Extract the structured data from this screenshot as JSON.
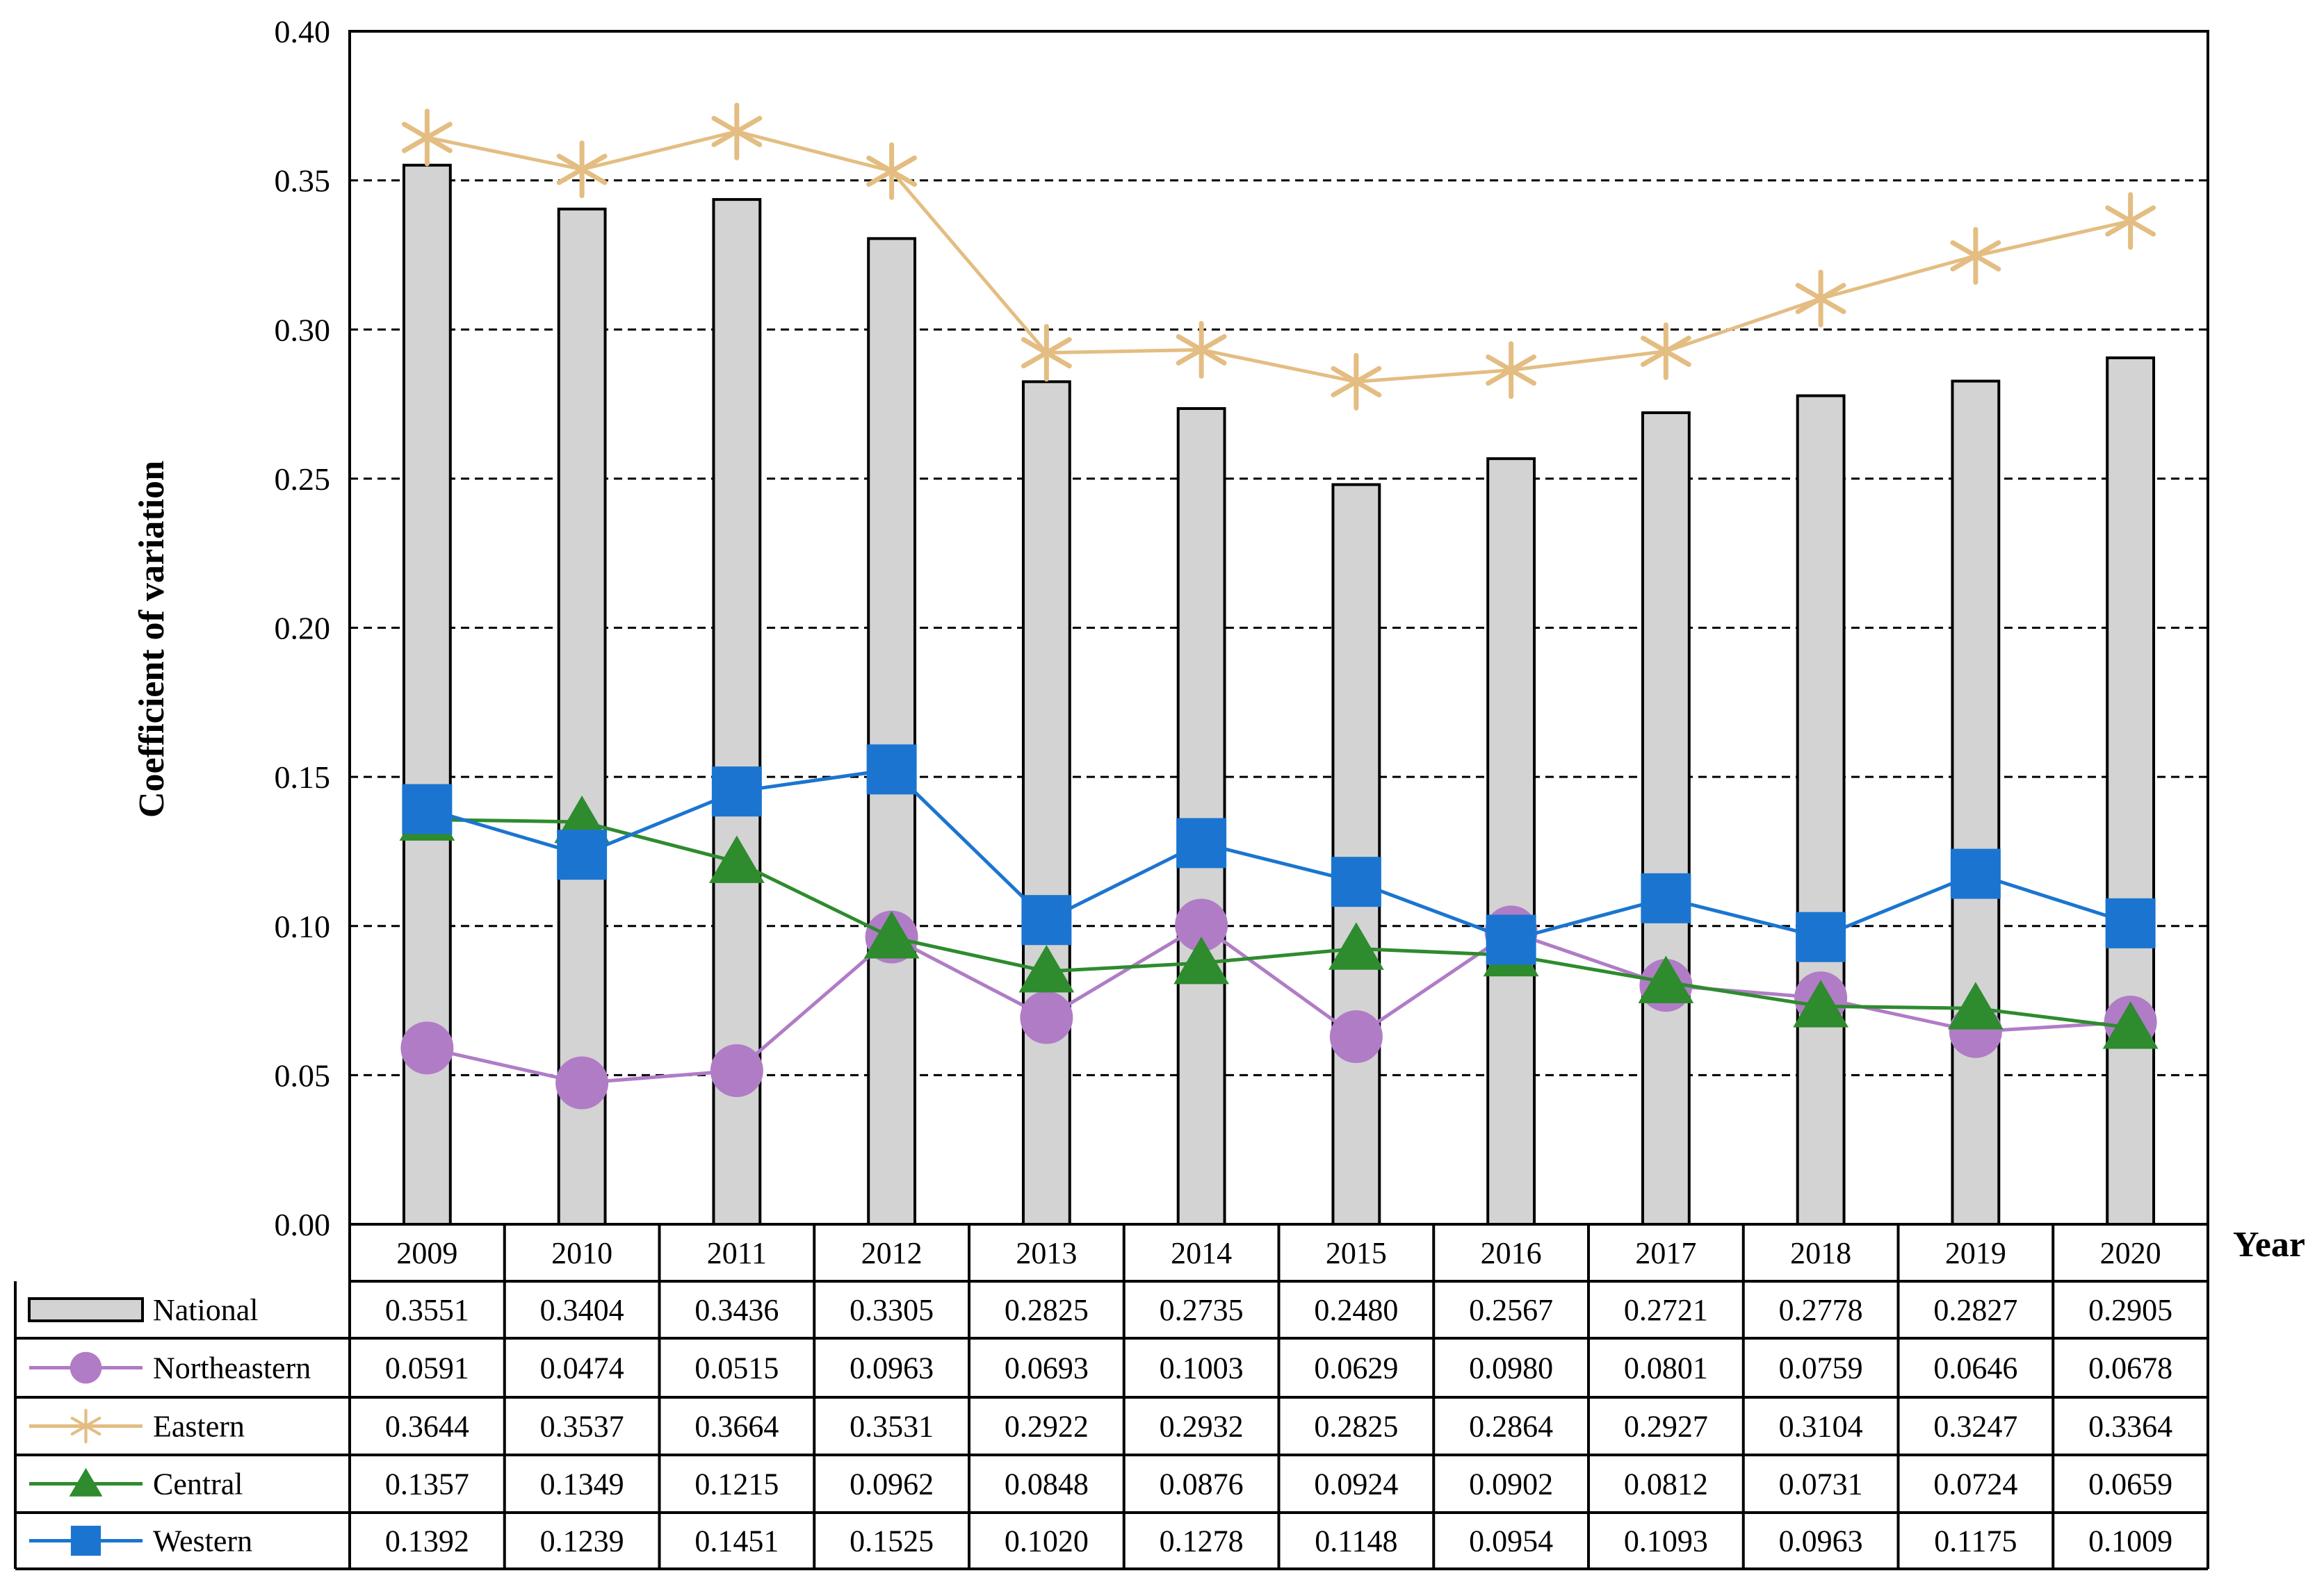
{
  "chart_data": {
    "type": "bar",
    "ylabel": "Coefficient of variation",
    "xlabel": "Year",
    "ylim": [
      0,
      0.4
    ],
    "yticks": [
      "0.00",
      "0.05",
      "0.10",
      "0.15",
      "0.20",
      "0.25",
      "0.30",
      "0.35",
      "0.40"
    ],
    "categories": [
      "2009",
      "2010",
      "2011",
      "2012",
      "2013",
      "2014",
      "2015",
      "2016",
      "2017",
      "2018",
      "2019",
      "2020"
    ],
    "series": [
      {
        "name": "National",
        "kind": "bar",
        "color": "#d3d3d3",
        "marker": "bar",
        "values": [
          0.3551,
          0.3404,
          0.3436,
          0.3305,
          0.2825,
          0.2735,
          0.248,
          0.2567,
          0.2721,
          0.2778,
          0.2827,
          0.2905
        ],
        "labels": [
          "0.3551",
          "0.3404",
          "0.3436",
          "0.3305",
          "0.2825",
          "0.2735",
          "0.2480",
          "0.2567",
          "0.2721",
          "0.2778",
          "0.2827",
          "0.2905"
        ]
      },
      {
        "name": "Northeastern",
        "kind": "line",
        "color": "#b07cc6",
        "marker": "circle",
        "values": [
          0.0591,
          0.0474,
          0.0515,
          0.0963,
          0.0693,
          0.1003,
          0.0629,
          0.098,
          0.0801,
          0.0759,
          0.0646,
          0.0678
        ],
        "labels": [
          "0.0591",
          "0.0474",
          "0.0515",
          "0.0963",
          "0.0693",
          "0.1003",
          "0.0629",
          "0.0980",
          "0.0801",
          "0.0759",
          "0.0646",
          "0.0678"
        ]
      },
      {
        "name": "Eastern",
        "kind": "line",
        "color": "#e3bd82",
        "marker": "star",
        "values": [
          0.3644,
          0.3537,
          0.3664,
          0.3531,
          0.2922,
          0.2932,
          0.2825,
          0.2864,
          0.2927,
          0.3104,
          0.3247,
          0.3364
        ],
        "labels": [
          "0.3644",
          "0.3537",
          "0.3664",
          "0.3531",
          "0.2922",
          "0.2932",
          "0.2825",
          "0.2864",
          "0.2927",
          "0.3104",
          "0.3247",
          "0.3364"
        ]
      },
      {
        "name": "Central",
        "kind": "line",
        "color": "#2e8b2e",
        "marker": "triangle",
        "values": [
          0.1357,
          0.1349,
          0.1215,
          0.0962,
          0.0848,
          0.0876,
          0.0924,
          0.0902,
          0.0812,
          0.0731,
          0.0724,
          0.0659
        ],
        "labels": [
          "0.1357",
          "0.1349",
          "0.1215",
          "0.0962",
          "0.0848",
          "0.0876",
          "0.0924",
          "0.0902",
          "0.0812",
          "0.0731",
          "0.0724",
          "0.0659"
        ]
      },
      {
        "name": "Western",
        "kind": "line",
        "color": "#1b75d0",
        "marker": "square",
        "values": [
          0.1392,
          0.1239,
          0.1451,
          0.1525,
          0.102,
          0.1278,
          0.1148,
          0.0954,
          0.1093,
          0.0963,
          0.1175,
          0.1009
        ],
        "labels": [
          "0.1392",
          "0.1239",
          "0.1451",
          "0.1525",
          "0.1020",
          "0.1278",
          "0.1148",
          "0.0954",
          "0.1093",
          "0.0963",
          "0.1175",
          "0.1009"
        ]
      }
    ]
  }
}
